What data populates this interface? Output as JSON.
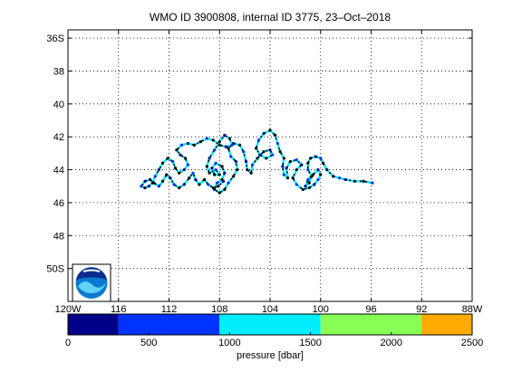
{
  "chart_data": {
    "type": "scatter",
    "title": "WMO ID 3900808, internal ID 3775, 23–Oct–2018",
    "x_axis": {
      "range": [
        -120,
        -88
      ],
      "ticks": [
        -120,
        -116,
        -112,
        -108,
        -104,
        -100,
        -96,
        -92,
        -88
      ],
      "tick_labels": [
        "120W",
        "116",
        "112",
        "108",
        "104",
        "100",
        "96",
        "92",
        "88W"
      ]
    },
    "y_axis": {
      "range": [
        -52,
        -35.5
      ],
      "reversed": true,
      "ticks": [
        -36,
        -38,
        -40,
        -42,
        -44,
        -46,
        -48,
        -50
      ],
      "tick_labels": [
        "36S",
        "38",
        "40",
        "42",
        "44",
        "46",
        "48",
        "50S"
      ]
    },
    "grid": true,
    "logo": "noaa-logo",
    "track": {
      "color": "#000000",
      "points": [
        [
          -95.9,
          -44.8
        ],
        [
          -96.6,
          -44.7
        ],
        [
          -97.3,
          -44.7
        ],
        [
          -98.0,
          -44.6
        ],
        [
          -98.5,
          -44.5
        ],
        [
          -99.0,
          -44.4
        ],
        [
          -99.5,
          -44.0
        ],
        [
          -99.8,
          -43.6
        ],
        [
          -100.0,
          -43.3
        ],
        [
          -100.4,
          -43.2
        ],
        [
          -100.8,
          -43.3
        ],
        [
          -101.0,
          -43.6
        ],
        [
          -101.0,
          -44.0
        ],
        [
          -100.7,
          -44.4
        ],
        [
          -100.9,
          -44.8
        ],
        [
          -101.2,
          -45.0
        ],
        [
          -101.0,
          -44.6
        ],
        [
          -100.6,
          -44.3
        ],
        [
          -100.2,
          -44.0
        ],
        [
          -100.0,
          -44.3
        ],
        [
          -100.2,
          -44.6
        ],
        [
          -100.5,
          -44.9
        ],
        [
          -100.9,
          -45.1
        ],
        [
          -101.4,
          -45.2
        ],
        [
          -101.9,
          -44.9
        ],
        [
          -102.2,
          -44.5
        ],
        [
          -101.9,
          -44.0
        ],
        [
          -101.5,
          -43.7
        ],
        [
          -101.9,
          -43.4
        ],
        [
          -102.4,
          -43.5
        ],
        [
          -102.7,
          -43.9
        ],
        [
          -102.6,
          -44.5
        ],
        [
          -102.9,
          -44.3
        ],
        [
          -103.0,
          -43.8
        ],
        [
          -102.9,
          -43.3
        ],
        [
          -103.2,
          -42.9
        ],
        [
          -103.4,
          -42.4
        ],
        [
          -103.6,
          -41.9
        ],
        [
          -104.0,
          -41.6
        ],
        [
          -104.5,
          -41.8
        ],
        [
          -104.9,
          -42.2
        ],
        [
          -105.1,
          -42.7
        ],
        [
          -104.8,
          -43.1
        ],
        [
          -104.3,
          -43.3
        ],
        [
          -103.8,
          -43.1
        ],
        [
          -104.0,
          -42.8
        ],
        [
          -104.5,
          -42.9
        ],
        [
          -105.0,
          -43.3
        ],
        [
          -105.4,
          -43.7
        ],
        [
          -105.5,
          -44.2
        ],
        [
          -105.8,
          -44.0
        ],
        [
          -105.9,
          -43.5
        ],
        [
          -106.1,
          -42.9
        ],
        [
          -106.4,
          -42.5
        ],
        [
          -106.9,
          -42.4
        ],
        [
          -107.3,
          -42.7
        ],
        [
          -107.1,
          -43.2
        ],
        [
          -106.7,
          -43.5
        ],
        [
          -106.6,
          -44.0
        ],
        [
          -106.9,
          -44.4
        ],
        [
          -107.3,
          -44.8
        ],
        [
          -107.6,
          -45.2
        ],
        [
          -108.0,
          -45.4
        ],
        [
          -108.4,
          -45.2
        ],
        [
          -108.2,
          -44.8
        ],
        [
          -107.8,
          -44.6
        ],
        [
          -107.6,
          -44.2
        ],
        [
          -107.8,
          -43.8
        ],
        [
          -108.3,
          -43.6
        ],
        [
          -108.6,
          -43.9
        ],
        [
          -108.4,
          -44.3
        ],
        [
          -108.0,
          -44.3
        ],
        [
          -108.3,
          -44.0
        ],
        [
          -108.8,
          -44.2
        ],
        [
          -109.0,
          -43.8
        ],
        [
          -108.8,
          -43.3
        ],
        [
          -108.4,
          -42.8
        ],
        [
          -108.0,
          -42.3
        ],
        [
          -107.6,
          -41.9
        ],
        [
          -107.2,
          -42.1
        ],
        [
          -107.0,
          -42.5
        ],
        [
          -107.5,
          -42.6
        ],
        [
          -108.0,
          -42.5
        ],
        [
          -108.5,
          -42.2
        ],
        [
          -109.0,
          -42.1
        ],
        [
          -109.5,
          -42.3
        ],
        [
          -110.0,
          -42.5
        ],
        [
          -110.5,
          -42.4
        ],
        [
          -111.0,
          -42.5
        ],
        [
          -111.4,
          -42.8
        ],
        [
          -111.1,
          -43.1
        ],
        [
          -110.7,
          -43.3
        ],
        [
          -110.5,
          -43.7
        ],
        [
          -110.8,
          -44.0
        ],
        [
          -111.2,
          -44.2
        ],
        [
          -111.5,
          -43.9
        ],
        [
          -111.7,
          -43.5
        ],
        [
          -112.1,
          -43.3
        ],
        [
          -112.5,
          -43.6
        ],
        [
          -112.8,
          -44.0
        ],
        [
          -113.1,
          -44.4
        ],
        [
          -113.3,
          -44.8
        ],
        [
          -113.6,
          -45.0
        ],
        [
          -113.9,
          -45.1
        ],
        [
          -114.2,
          -45.0
        ],
        [
          -113.9,
          -44.7
        ],
        [
          -113.5,
          -44.6
        ],
        [
          -113.2,
          -44.8
        ],
        [
          -112.8,
          -45.0
        ],
        [
          -112.5,
          -44.7
        ],
        [
          -112.2,
          -44.3
        ],
        [
          -111.9,
          -44.5
        ],
        [
          -111.6,
          -44.9
        ],
        [
          -111.2,
          -45.1
        ],
        [
          -110.8,
          -44.9
        ],
        [
          -110.4,
          -44.5
        ],
        [
          -110.1,
          -44.2
        ],
        [
          -109.9,
          -44.6
        ],
        [
          -109.6,
          -44.9
        ],
        [
          -109.2,
          -44.6
        ],
        [
          -108.9,
          -44.9
        ],
        [
          -108.5,
          -45.1
        ],
        [
          -108.1,
          -45.0
        ],
        [
          -107.7,
          -44.7
        ]
      ]
    },
    "colorbar": {
      "label": "pressure [dbar]",
      "range": [
        0,
        2500
      ],
      "ticks": [
        0,
        500,
        1000,
        1500,
        2000,
        2500
      ],
      "tick_labels": [
        "0",
        "500",
        "1000",
        "1500",
        "2000",
        "2500"
      ],
      "bins": [
        {
          "from": 0,
          "to": 312,
          "color": "#000088"
        },
        {
          "from": 312,
          "to": 937,
          "color": "#0033ff"
        },
        {
          "from": 937,
          "to": 1562,
          "color": "#00eeff"
        },
        {
          "from": 1562,
          "to": 2187,
          "color": "#88ff55"
        },
        {
          "from": 2187,
          "to": 2500,
          "color": "#ffaa00"
        }
      ]
    }
  }
}
